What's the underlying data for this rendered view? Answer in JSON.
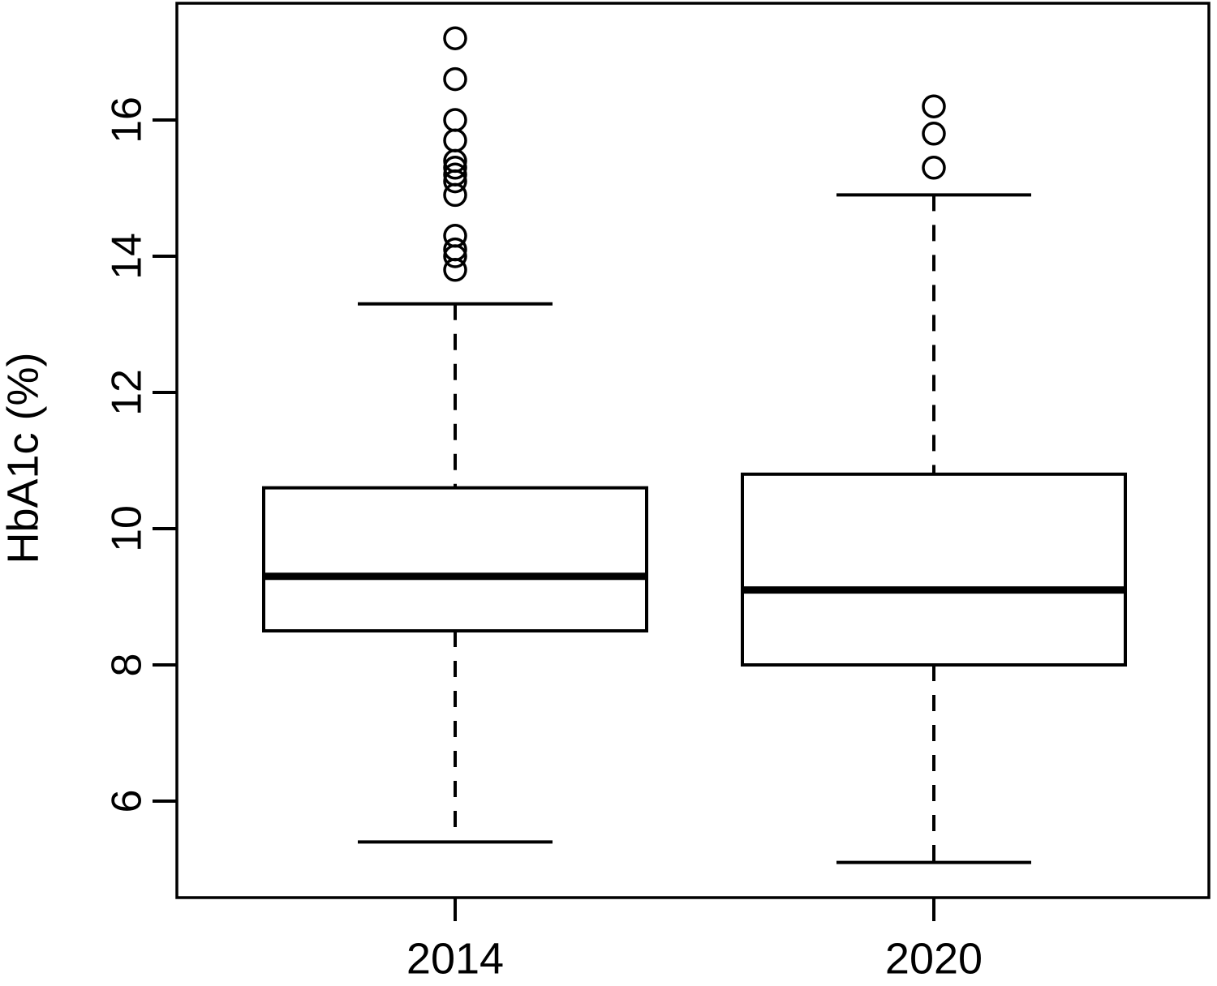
{
  "chart_data": {
    "type": "boxplot",
    "title": "",
    "xlabel": "",
    "ylabel": "HbA1c (%)",
    "ylim": [
      4.6,
      17.7
    ],
    "yticks": [
      6,
      8,
      10,
      12,
      14,
      16
    ],
    "categories": [
      "2014",
      "2020"
    ],
    "series": [
      {
        "name": "2014",
        "lower_whisker": 5.4,
        "q1": 8.5,
        "median": 9.3,
        "q3": 10.6,
        "upper_whisker": 13.3,
        "outliers": [
          13.8,
          14.0,
          14.1,
          14.3,
          14.9,
          15.1,
          15.2,
          15.3,
          15.4,
          15.7,
          16.0,
          16.6,
          17.2
        ]
      },
      {
        "name": "2020",
        "lower_whisker": 5.1,
        "q1": 8.0,
        "median": 9.1,
        "q3": 10.8,
        "upper_whisker": 14.9,
        "outliers": [
          15.3,
          15.8,
          16.2
        ]
      }
    ],
    "grid": false,
    "legend": false,
    "colors": {
      "stroke": "#000000",
      "background": "#ffffff"
    }
  }
}
